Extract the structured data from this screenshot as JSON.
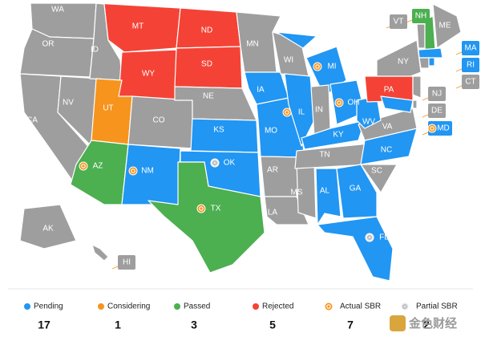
{
  "map": {
    "states": [
      {
        "label": "WA",
        "color": "#9e9e9e"
      },
      {
        "label": "OR",
        "color": "#9e9e9e"
      },
      {
        "label": "CA",
        "color": "#9e9e9e"
      },
      {
        "label": "NV",
        "color": "#9e9e9e"
      },
      {
        "label": "ID",
        "color": "#9e9e9e"
      },
      {
        "label": "MT",
        "color": "#f44336"
      },
      {
        "label": "WY",
        "color": "#f44336"
      },
      {
        "label": "UT",
        "color": "#f7941d"
      },
      {
        "label": "AZ",
        "color": "#4caf50",
        "sbr": "actual"
      },
      {
        "label": "CO",
        "color": "#9e9e9e"
      },
      {
        "label": "NM",
        "color": "#2196f3",
        "sbr": "actual"
      },
      {
        "label": "ND",
        "color": "#f44336"
      },
      {
        "label": "SD",
        "color": "#f44336"
      },
      {
        "label": "NE",
        "color": "#9e9e9e"
      },
      {
        "label": "KS",
        "color": "#2196f3"
      },
      {
        "label": "OK",
        "color": "#2196f3",
        "sbr": "partial"
      },
      {
        "label": "TX",
        "color": "#4caf50",
        "sbr": "actual"
      },
      {
        "label": "MN",
        "color": "#9e9e9e"
      },
      {
        "label": "IA",
        "color": "#2196f3"
      },
      {
        "label": "MO",
        "color": "#2196f3"
      },
      {
        "label": "AR",
        "color": "#9e9e9e"
      },
      {
        "label": "LA",
        "color": "#9e9e9e"
      },
      {
        "label": "WI",
        "color": "#9e9e9e"
      },
      {
        "label": "IL",
        "color": "#2196f3",
        "sbr": "actual"
      },
      {
        "label": "MS",
        "color": "#9e9e9e"
      },
      {
        "label": "MI",
        "color": "#2196f3",
        "sbr": "actual"
      },
      {
        "label": "IN",
        "color": "#9e9e9e"
      },
      {
        "label": "OH",
        "color": "#2196f3",
        "sbr": "actual"
      },
      {
        "label": "KY",
        "color": "#2196f3"
      },
      {
        "label": "TN",
        "color": "#9e9e9e"
      },
      {
        "label": "AL",
        "color": "#2196f3"
      },
      {
        "label": "GA",
        "color": "#2196f3"
      },
      {
        "label": "FL",
        "color": "#2196f3",
        "sbr": "partial"
      },
      {
        "label": "SC",
        "color": "#9e9e9e"
      },
      {
        "label": "NC",
        "color": "#2196f3"
      },
      {
        "label": "VA",
        "color": "#9e9e9e"
      },
      {
        "label": "WV",
        "color": "#2196f3"
      },
      {
        "label": "PA",
        "color": "#f44336"
      },
      {
        "label": "NY",
        "color": "#9e9e9e"
      },
      {
        "label": "VT",
        "color": "#9e9e9e"
      },
      {
        "label": "NH",
        "color": "#4caf50"
      },
      {
        "label": "ME",
        "color": "#9e9e9e"
      },
      {
        "label": "MA",
        "color": "#2196f3"
      },
      {
        "label": "CT",
        "color": "#9e9e9e"
      },
      {
        "label": "RI",
        "color": "#2196f3"
      },
      {
        "label": "NJ",
        "color": "#9e9e9e"
      },
      {
        "label": "DE",
        "color": "#9e9e9e"
      },
      {
        "label": "MD",
        "color": "#2196f3",
        "sbr": "actual"
      },
      {
        "label": "AK",
        "color": "#9e9e9e"
      },
      {
        "label": "HI",
        "color": "#9e9e9e"
      }
    ]
  },
  "legend": {
    "items": [
      {
        "label": "Pending",
        "color": "#2196f3",
        "count": 17
      },
      {
        "label": "Considering",
        "color": "#f7941d",
        "count": 1
      },
      {
        "label": "Passed",
        "color": "#4caf50",
        "count": 3
      },
      {
        "label": "Rejected",
        "color": "#f44336",
        "count": 5
      },
      {
        "label": "Actual SBR",
        "icon": "actual",
        "count": 7
      },
      {
        "label": "Partial SBR",
        "icon": "partial",
        "count": 2
      }
    ]
  },
  "watermark": "金色财经"
}
